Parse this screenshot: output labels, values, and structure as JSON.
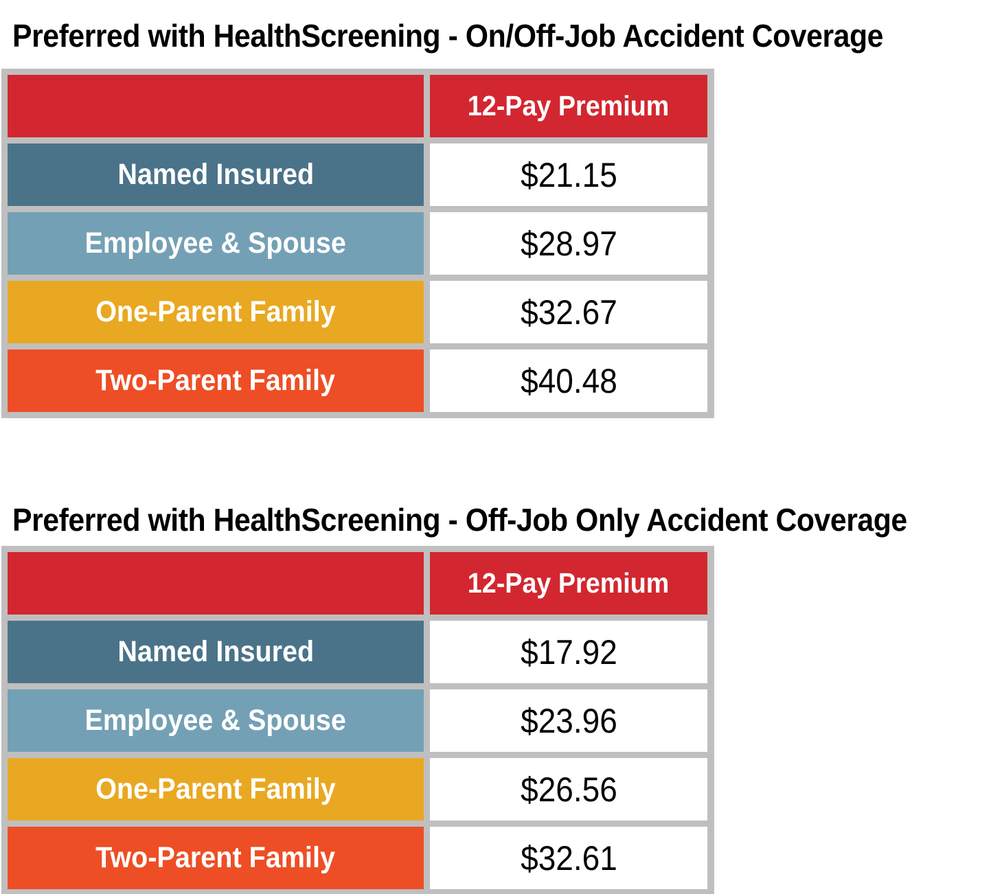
{
  "colors": {
    "header_red": "#D22730",
    "row_named_insured": "#4A7389",
    "row_employee_spouse": "#74A0B5",
    "row_one_parent": "#E9A821",
    "row_two_parent": "#EE4E25",
    "table_border_gray": "#BFBFBF",
    "value_cell_white": "#FFFFFF",
    "title_black": "#000000"
  },
  "tables": [
    {
      "title": "Preferred with HealthScreening - On/Off-Job Accident Coverage",
      "premium_column_header": "12-Pay Premium",
      "rows": [
        {
          "label": "Named Insured",
          "value": "$21.15"
        },
        {
          "label": "Employee & Spouse",
          "value": "$28.97"
        },
        {
          "label": "One-Parent Family",
          "value": "$32.67"
        },
        {
          "label": "Two-Parent Family",
          "value": "$40.48"
        }
      ]
    },
    {
      "title": "Preferred with HealthScreening - Off-Job Only Accident Coverage",
      "premium_column_header": "12-Pay Premium",
      "rows": [
        {
          "label": "Named Insured",
          "value": "$17.92"
        },
        {
          "label": "Employee & Spouse",
          "value": "$23.96"
        },
        {
          "label": "One-Parent Family",
          "value": "$26.56"
        },
        {
          "label": "Two-Parent Family",
          "value": "$32.61"
        }
      ]
    }
  ]
}
